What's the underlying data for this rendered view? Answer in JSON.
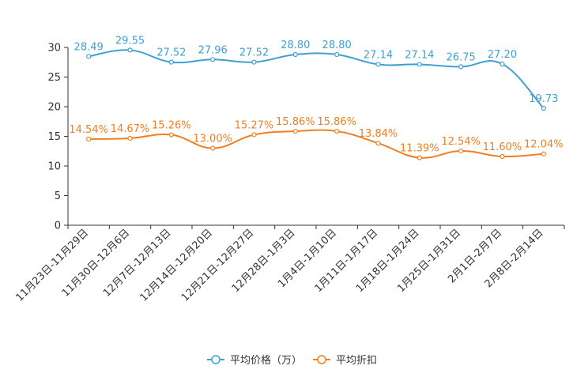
{
  "chart_data": {
    "type": "line",
    "title": "",
    "xlabel": "",
    "ylabel": "",
    "ylim": [
      0,
      30
    ],
    "yticks": [
      0,
      5,
      10,
      15,
      20,
      25,
      30
    ],
    "grid": false,
    "smooth": true,
    "legend_position": "bottom-center",
    "categories": [
      "11月23日-11月29日",
      "11月30日-12月6日",
      "12月7日-12月13日",
      "12月14日-12月20日",
      "12月21日-12月27日",
      "12月28日-1月3日",
      "1月4日-1月10日",
      "1月11日-1月17日",
      "1月18日-1月24日",
      "1月25日-1月31日",
      "2月1日-2月7日",
      "2月8日-2月14日"
    ],
    "series": [
      {
        "name": "平均价格（万）",
        "color": "#3fa0d4",
        "values": [
          28.49,
          29.55,
          27.52,
          27.96,
          27.52,
          28.8,
          28.8,
          27.14,
          27.14,
          26.75,
          27.2,
          19.73
        ],
        "labels": [
          "28.49",
          "29.55",
          "27.52",
          "27.96",
          "27.52",
          "28.80",
          "28.80",
          "27.14",
          "27.14",
          "26.75",
          "27.20",
          "19.73"
        ]
      },
      {
        "name": "平均折扣",
        "color": "#f07f22",
        "values": [
          14.54,
          14.67,
          15.26,
          13.0,
          15.27,
          15.86,
          15.86,
          13.84,
          11.39,
          12.54,
          11.6,
          12.04
        ],
        "labels": [
          "14.54%",
          "14.67%",
          "15.26%",
          "13.00%",
          "15.27%",
          "15.86%",
          "15.86%",
          "13.84%",
          "11.39%",
          "12.54%",
          "11.60%",
          "12.04%"
        ]
      }
    ]
  }
}
